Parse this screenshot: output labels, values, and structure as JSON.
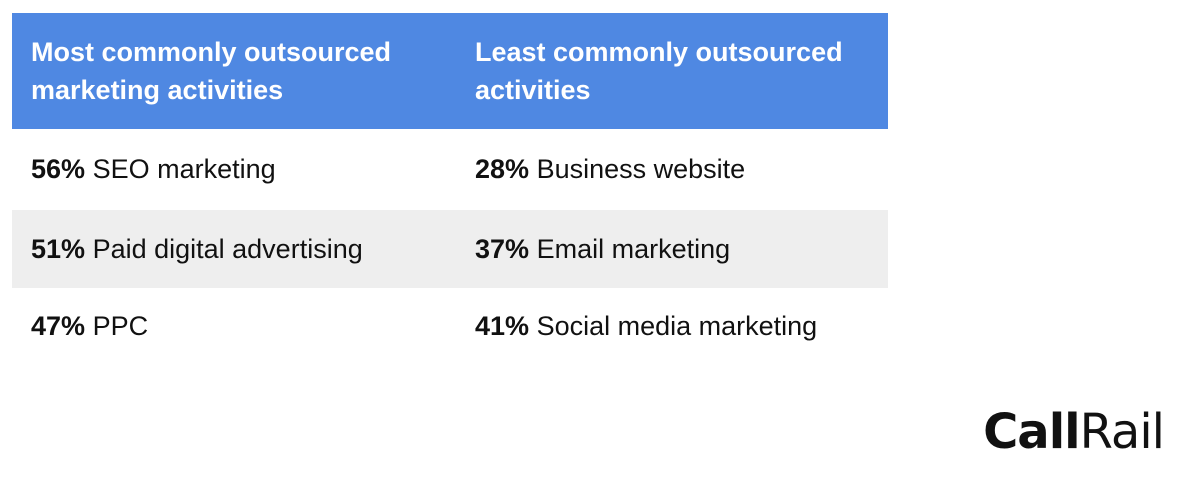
{
  "headers": {
    "left": "Most commonly outsourced marketing activities",
    "right": "Least commonly outsourced activities"
  },
  "rows": [
    {
      "left": {
        "pct": "56%",
        "label": "SEO marketing"
      },
      "right": {
        "pct": "28%",
        "label": "Business website"
      }
    },
    {
      "left": {
        "pct": "51%",
        "label": "Paid digital advertising"
      },
      "right": {
        "pct": "37%",
        "label": "Email marketing"
      }
    },
    {
      "left": {
        "pct": "47%",
        "label": "PPC"
      },
      "right": {
        "pct": "41%",
        "label": "Social media marketing"
      }
    }
  ],
  "colors": {
    "header_bg": "#4f88e2",
    "stripe_bg": "#eeeeee"
  },
  "logo": {
    "part1": "Call",
    "part2": "Rail"
  }
}
